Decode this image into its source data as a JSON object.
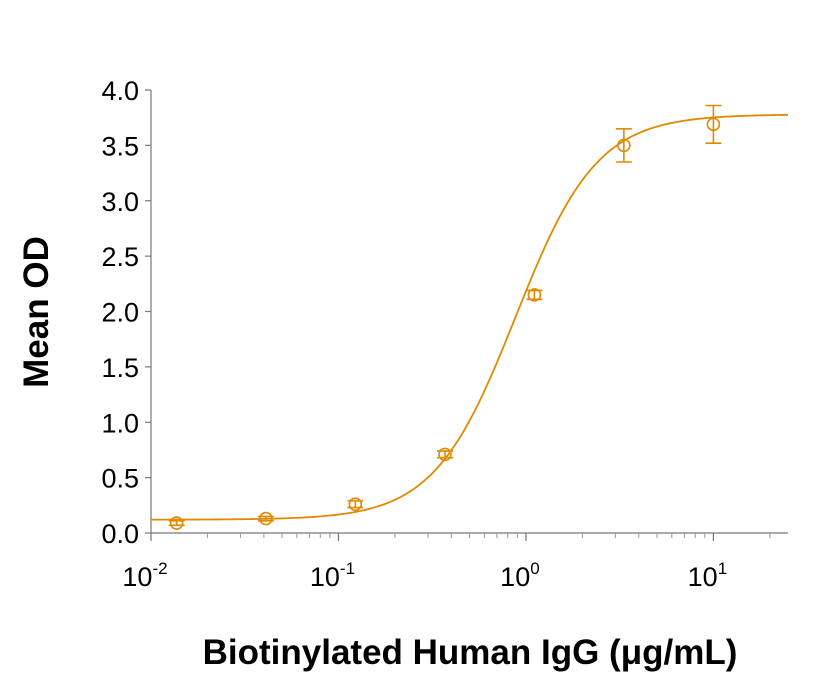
{
  "chart_data": {
    "type": "scatter",
    "xlabel": "Biotinylated Human IgG (μg/mL)",
    "ylabel": "Mean OD",
    "xscale": "log",
    "xlim": [
      0.01,
      25
    ],
    "ylim": [
      0,
      4
    ],
    "x_ticks": [
      {
        "base": "10",
        "exp": "-2",
        "value": 0.01
      },
      {
        "base": "10",
        "exp": "-1",
        "value": 0.1
      },
      {
        "base": "10",
        "exp": "0",
        "value": 1
      },
      {
        "base": "10",
        "exp": "1",
        "value": 10
      }
    ],
    "y_ticks": [
      "0.0",
      "0.5",
      "1.0",
      "1.5",
      "2.0",
      "2.5",
      "3.0",
      "3.5",
      "4.0"
    ],
    "grid": false,
    "legend": "none",
    "color": "#E08A00",
    "series": [
      {
        "points": [
          {
            "x": 0.0137,
            "y": 0.09,
            "err": 0.02
          },
          {
            "x": 0.041,
            "y": 0.13,
            "err": 0.02
          },
          {
            "x": 0.123,
            "y": 0.26,
            "err": 0.03
          },
          {
            "x": 0.37,
            "y": 0.71,
            "err": 0.03
          },
          {
            "x": 1.11,
            "y": 2.15,
            "err": 0.04
          },
          {
            "x": 3.33,
            "y": 3.5,
            "err": 0.15
          },
          {
            "x": 10,
            "y": 3.69,
            "err": 0.17
          }
        ],
        "fit": {
          "model": "4PL",
          "bottom": 0.12,
          "top": 3.78,
          "ec50": 0.88,
          "hill": 2.0
        }
      }
    ]
  }
}
